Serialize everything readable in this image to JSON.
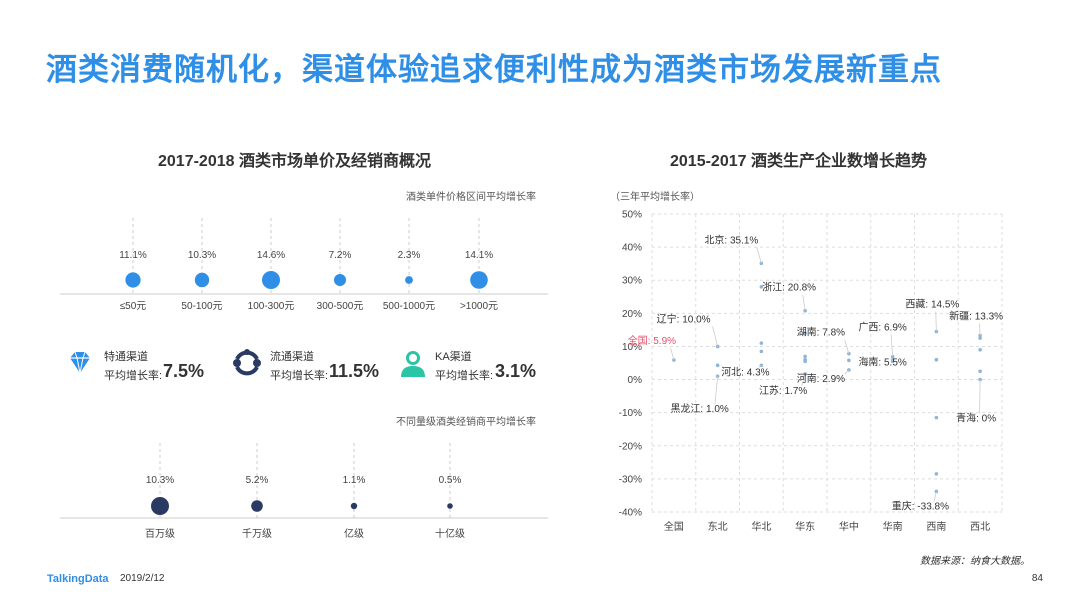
{
  "title": "酒类消费随机化，渠道体验追求便利性成为酒类市场发展新重点",
  "left": {
    "title": "2017-2018  酒类市场单价及经销商概况",
    "note1": "酒类单件价格区间平均增长率",
    "note2": "不同量级酒类经销商平均增长率",
    "channels": [
      {
        "name": "特通渠道",
        "label": "平均增长率:",
        "value": "7.5%",
        "icon": "diamond-icon"
      },
      {
        "name": "流通渠道",
        "label": "平均增长率:",
        "value": "11.5%",
        "icon": "circulation-icon"
      },
      {
        "name": "KA渠道",
        "label": "平均增长率:",
        "value": "3.1%",
        "icon": "person-icon"
      }
    ]
  },
  "right": {
    "title": "2015-2017  酒类生产企业数增长趋势",
    "unit_note": "（三年平均增长率）",
    "source": "数据来源：纳食大数据。"
  },
  "chart_data": [
    {
      "type": "scatter",
      "title": "",
      "categories": [
        "≤50元",
        "50-100元",
        "100-300元",
        "300-500元",
        "500-1000元",
        ">1000元"
      ],
      "values": [
        11.1,
        10.3,
        14.6,
        7.2,
        2.3,
        14.1
      ],
      "labels": [
        "11.1%",
        "10.3%",
        "14.6%",
        "7.2%",
        "2.3%",
        "14.1%"
      ],
      "color": "#2f8ee5"
    },
    {
      "type": "scatter",
      "title": "",
      "categories": [
        "百万级",
        "千万级",
        "亿级",
        "十亿级"
      ],
      "values": [
        10.3,
        5.2,
        1.1,
        0.5
      ],
      "labels": [
        "10.3%",
        "5.2%",
        "1.1%",
        "0.5%"
      ],
      "color": "#2b3a63"
    },
    {
      "type": "scatter",
      "title": "2015-2017  酒类生产企业数增长趋势",
      "categories": [
        "全国",
        "东北",
        "华北",
        "华东",
        "华中",
        "华南",
        "西南",
        "西北"
      ],
      "ylim": [
        -40,
        50
      ],
      "yticks": [
        "-40%",
        "-30%",
        "-20%",
        "-10%",
        "0%",
        "10%",
        "20%",
        "30%",
        "40%",
        "50%"
      ],
      "grid": true,
      "color": "#8fb4d8",
      "points": [
        {
          "cat": "全国",
          "y": 5.9
        },
        {
          "cat": "东北",
          "y": 10.0
        },
        {
          "cat": "东北",
          "y": 4.3
        },
        {
          "cat": "东北",
          "y": 1.0
        },
        {
          "cat": "华北",
          "y": 35.1
        },
        {
          "cat": "华北",
          "y": 28.0
        },
        {
          "cat": "华北",
          "y": 11.0
        },
        {
          "cat": "华北",
          "y": 8.5
        },
        {
          "cat": "华北",
          "y": 4.3
        },
        {
          "cat": "华东",
          "y": 20.8
        },
        {
          "cat": "华东",
          "y": 14.0
        },
        {
          "cat": "华东",
          "y": 7.0
        },
        {
          "cat": "华东",
          "y": 6.0
        },
        {
          "cat": "华东",
          "y": 5.5
        },
        {
          "cat": "华东",
          "y": 1.7
        },
        {
          "cat": "华中",
          "y": 7.8
        },
        {
          "cat": "华中",
          "y": 5.8
        },
        {
          "cat": "华中",
          "y": 2.9
        },
        {
          "cat": "华南",
          "y": 6.9
        },
        {
          "cat": "华南",
          "y": 6.2
        },
        {
          "cat": "华南",
          "y": 5.5
        },
        {
          "cat": "西南",
          "y": 14.5
        },
        {
          "cat": "西南",
          "y": 6.0
        },
        {
          "cat": "西南",
          "y": -11.5
        },
        {
          "cat": "西南",
          "y": -28.5
        },
        {
          "cat": "西南",
          "y": -33.8
        },
        {
          "cat": "西北",
          "y": 13.3
        },
        {
          "cat": "西北",
          "y": 12.5
        },
        {
          "cat": "西北",
          "y": 9.0
        },
        {
          "cat": "西北",
          "y": 2.5
        },
        {
          "cat": "西北",
          "y": 0
        }
      ],
      "annotations": [
        {
          "text": "全国: 5.9%",
          "cat": "全国",
          "y": 5.9,
          "highlight": true
        },
        {
          "text": "辽宁: 10.0%",
          "cat": "东北",
          "y": 10.0
        },
        {
          "text": "河北: 4.3%",
          "cat": "华北",
          "y": 4.3
        },
        {
          "text": "黑龙江: 1.0%",
          "cat": "东北",
          "y": 1.0
        },
        {
          "text": "北京: 35.1%",
          "cat": "华北",
          "y": 35.1
        },
        {
          "text": "浙江: 20.8%",
          "cat": "华东",
          "y": 20.8
        },
        {
          "text": "江苏: 1.7%",
          "cat": "华东",
          "y": 1.7
        },
        {
          "text": "湖南: 7.8%",
          "cat": "华中",
          "y": 7.8
        },
        {
          "text": "河南: 2.9%",
          "cat": "华中",
          "y": 2.9
        },
        {
          "text": "广西: 6.9%",
          "cat": "华南",
          "y": 6.9
        },
        {
          "text": "海南: 5.5%",
          "cat": "华南",
          "y": 5.5
        },
        {
          "text": "西藏: 14.5%",
          "cat": "西南",
          "y": 14.5
        },
        {
          "text": "重庆: -33.8%",
          "cat": "西南",
          "y": -33.8
        },
        {
          "text": "新疆: 13.3%",
          "cat": "西北",
          "y": 13.3
        },
        {
          "text": "青海: 0%",
          "cat": "西北",
          "y": 0
        }
      ]
    }
  ],
  "footer": {
    "logo": "TalkingData",
    "date": "2019/2/12",
    "page": "84"
  }
}
